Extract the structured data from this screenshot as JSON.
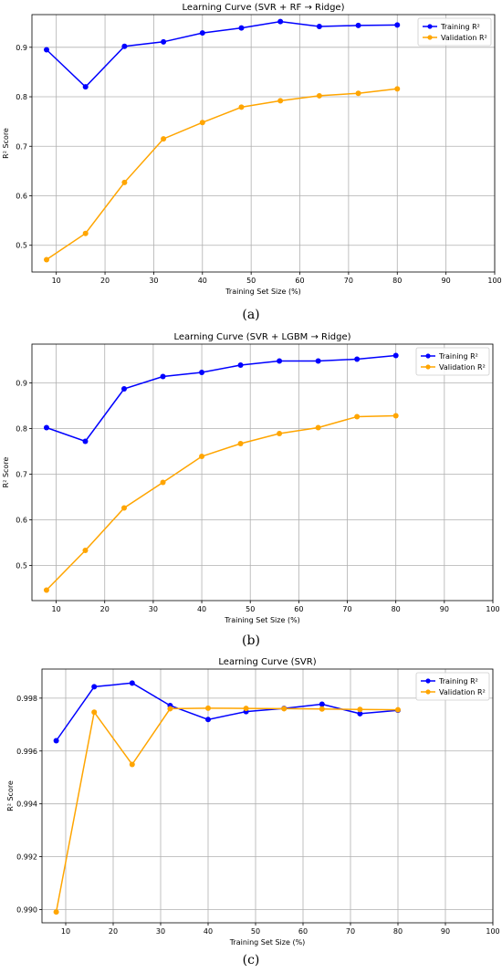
{
  "captions": [
    "(a)",
    "(b)",
    "(c)"
  ],
  "colors": {
    "training": "#0000ff",
    "validation": "#ffa500",
    "grid": "#b0b0b0"
  },
  "chart_data": [
    {
      "type": "line",
      "title": "Learning Curve (SVR + RF → Ridge)",
      "xlabel": "Training Set Size (%)",
      "ylabel": "R² Score",
      "xlim": [
        5,
        100
      ],
      "ylim": [
        0.446,
        0.966
      ],
      "xticks": [
        10,
        20,
        30,
        40,
        50,
        60,
        70,
        80,
        90,
        100
      ],
      "yticks": [
        0.5,
        0.6,
        0.7,
        0.8,
        0.9
      ],
      "ytick_decimals": 1,
      "grid": true,
      "legend": "top-right",
      "x": [
        8,
        16,
        24,
        32,
        40,
        48,
        56,
        64,
        72,
        80
      ],
      "series": [
        {
          "name": "Training R²",
          "values": [
            0.895,
            0.82,
            0.902,
            0.911,
            0.929,
            0.939,
            0.952,
            0.942,
            0.944,
            0.945
          ]
        },
        {
          "name": "Validation R²",
          "values": [
            0.471,
            0.524,
            0.627,
            0.715,
            0.748,
            0.779,
            0.792,
            0.802,
            0.807,
            0.816
          ]
        }
      ]
    },
    {
      "type": "line",
      "title": "Learning Curve (SVR + LGBM → Ridge)",
      "xlabel": "Training Set Size (%)",
      "ylabel": "R² Score",
      "xlim": [
        5,
        100
      ],
      "ylim": [
        0.423,
        0.985
      ],
      "xticks": [
        10,
        20,
        30,
        40,
        50,
        60,
        70,
        80,
        90,
        100
      ],
      "yticks": [
        0.5,
        0.6,
        0.7,
        0.8,
        0.9
      ],
      "ytick_decimals": 1,
      "grid": true,
      "legend": "top-right",
      "x": [
        8,
        16,
        24,
        32,
        40,
        48,
        56,
        64,
        72,
        80
      ],
      "series": [
        {
          "name": "Training R²",
          "values": [
            0.802,
            0.772,
            0.887,
            0.914,
            0.923,
            0.939,
            0.948,
            0.948,
            0.952,
            0.96
          ]
        },
        {
          "name": "Validation R²",
          "values": [
            0.446,
            0.533,
            0.626,
            0.682,
            0.739,
            0.767,
            0.789,
            0.802,
            0.826,
            0.828
          ]
        }
      ]
    },
    {
      "type": "line",
      "title": "Learning Curve (SVR)",
      "xlabel": "Training Set Size (%)",
      "ylabel": "R² Score",
      "xlim": [
        5,
        100
      ],
      "ylim": [
        0.9895,
        0.9991
      ],
      "xticks": [
        10,
        20,
        30,
        40,
        50,
        60,
        70,
        80,
        90,
        100
      ],
      "yticks": [
        0.99,
        0.992,
        0.994,
        0.996,
        0.998
      ],
      "ytick_decimals": 3,
      "grid": true,
      "legend": "top-right",
      "x": [
        8,
        16,
        24,
        32,
        40,
        48,
        56,
        64,
        72,
        80
      ],
      "series": [
        {
          "name": "Training R²",
          "values": [
            0.99639,
            0.99843,
            0.99857,
            0.99772,
            0.99719,
            0.99749,
            0.99761,
            0.99777,
            0.99741,
            0.99754
          ]
        },
        {
          "name": "Validation R²",
          "values": [
            0.98991,
            0.99747,
            0.99549,
            0.9976,
            0.99762,
            0.99761,
            0.9976,
            0.99759,
            0.99757,
            0.99756
          ]
        }
      ]
    }
  ]
}
